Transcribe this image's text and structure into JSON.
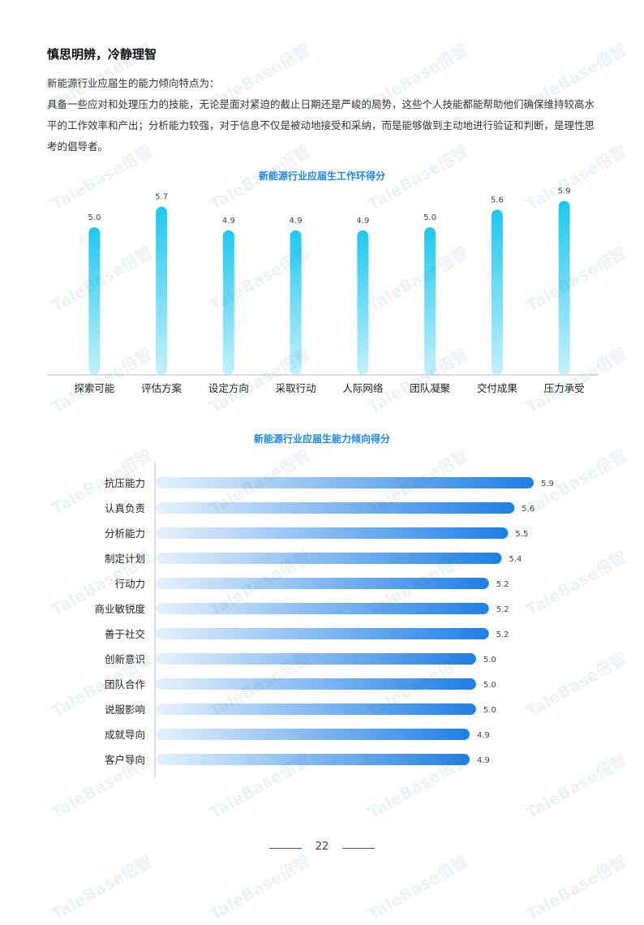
{
  "heading": "慎思明辨，冷静理智",
  "intro": "新能源行业应届生的能力倾向特点为：",
  "paragraph": "具备一些应对和处理压力的技能，无论是面对紧迫的截止日期还是严峻的局势，这些个人技能都能帮助他们确保维持较高水平的工作效率和产出；分析能力较强，对于信息不仅是被动地接受和采纳，而是能够做到主动地进行验证和判断，是理性思考的倡导者。",
  "watermark": "TaleBase倍智",
  "page_number": "22",
  "colors": {
    "accent": "#1e88e5",
    "bar_top": "#1ec8f0",
    "bar_bottom": "#c4f0fc"
  },
  "chart_data": [
    {
      "type": "bar",
      "title": "新能源行业应届生工作环得分",
      "categories": [
        "探索可能",
        "评估方案",
        "设定方向",
        "采取行动",
        "人际网络",
        "团队凝聚",
        "交付成果",
        "压力承受"
      ],
      "values": [
        5.0,
        5.7,
        4.9,
        4.9,
        4.9,
        5.0,
        5.6,
        5.9
      ],
      "labels": [
        "5.0",
        "5.7",
        "4.9",
        "4.9",
        "4.9",
        "5.0",
        "5.6",
        "5.9"
      ],
      "ylim": [
        0,
        6.6
      ]
    },
    {
      "type": "bar",
      "orientation": "horizontal",
      "title": "新能源行业应届生能力倾向得分",
      "categories": [
        "抗压能力",
        "认真负责",
        "分析能力",
        "制定计划",
        "行动力",
        "商业敏锐度",
        "善于社交",
        "创新意识",
        "团队合作",
        "说服影响",
        "成就导向",
        "客户导向"
      ],
      "values": [
        5.9,
        5.6,
        5.5,
        5.4,
        5.2,
        5.2,
        5.2,
        5.0,
        5.0,
        5.0,
        4.9,
        4.9
      ],
      "labels": [
        "5.9",
        "5.6",
        "5.5",
        "5.4",
        "5.2",
        "5.2",
        "5.2",
        "5.0",
        "5.0",
        "5.0",
        "4.9",
        "4.9"
      ],
      "xlim": [
        0,
        5.9
      ]
    }
  ]
}
